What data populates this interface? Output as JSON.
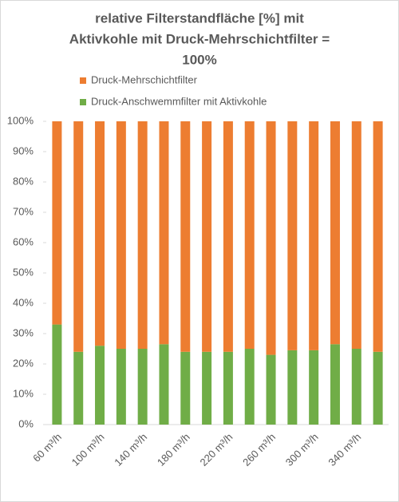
{
  "chart_data": {
    "type": "stacked_bar",
    "title": [
      "relative Filterstandfläche [%]  mit",
      "Aktivkohle mit Druck-Mehrschichtfilter =",
      "100%"
    ],
    "categories": [
      "60 m³/h",
      null,
      "100 m³/h",
      null,
      "140 m³/h",
      null,
      "180 m³/h",
      null,
      "220 m³/h",
      null,
      "260 m³/h",
      null,
      "300 m³/h",
      null,
      "340 m³/h",
      null
    ],
    "series": [
      {
        "name": "Druck-Anschwemmfilter mit Aktivkohle",
        "color": "#70AD47",
        "values": [
          33,
          24,
          26,
          25,
          25,
          26.5,
          24,
          24,
          24,
          25,
          23,
          24.5,
          24.5,
          26.5,
          25,
          24
        ]
      },
      {
        "name": "Druck-Mehrschichtfilter",
        "color": "#ED7D31",
        "values": [
          67,
          76,
          74,
          75,
          75,
          73.5,
          76,
          76,
          76,
          75,
          77,
          75.5,
          75.5,
          73.5,
          75,
          76
        ]
      }
    ],
    "ylim": [
      0,
      100
    ],
    "yticks": [
      {
        "value": 0,
        "label": "0%"
      },
      {
        "value": 10,
        "label": "10%"
      },
      {
        "value": 20,
        "label": "20%"
      },
      {
        "value": 30,
        "label": "30%"
      },
      {
        "value": 40,
        "label": "40%"
      },
      {
        "value": 50,
        "label": "50%"
      },
      {
        "value": 60,
        "label": "60%"
      },
      {
        "value": 70,
        "label": "70%"
      },
      {
        "value": 80,
        "label": "80%"
      },
      {
        "value": 90,
        "label": "90%"
      },
      {
        "value": 100,
        "label": "100%"
      }
    ],
    "grid": false
  }
}
